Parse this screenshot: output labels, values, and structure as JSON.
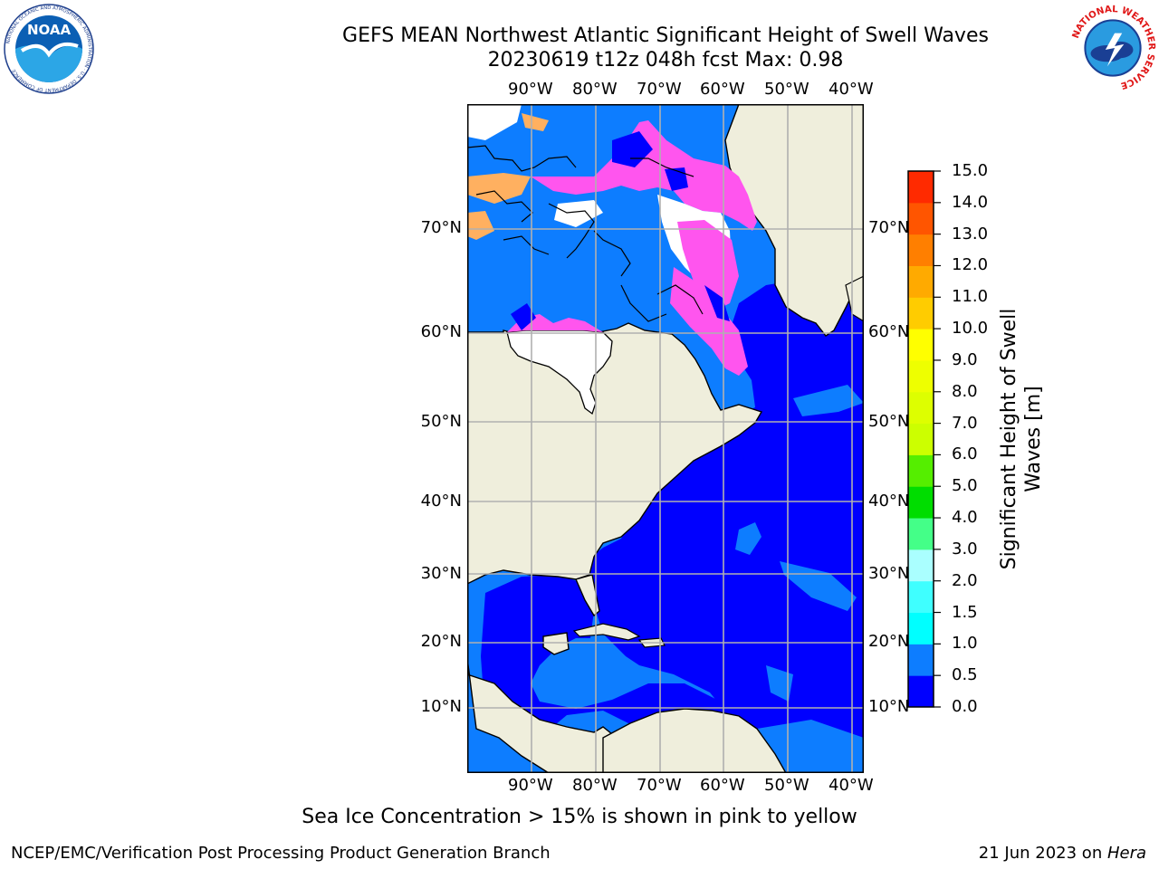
{
  "header": {
    "title_line1": "GEFS MEAN Northwest Atlantic Significant Height of Swell Waves",
    "title_line2": "20230619 t12z 048h fcst   Max: 0.98"
  },
  "logos": {
    "noaa_text": "NOAA",
    "noaa_ring": "NATIONAL OCEANIC AND ATMOSPHERIC ADMINISTRATION · U.S. DEPARTMENT OF COMMERCE",
    "nws_ring": "NATIONAL WEATHER SERVICE"
  },
  "map": {
    "lon_labels": [
      "90°W",
      "80°W",
      "70°W",
      "60°W",
      "50°W",
      "40°W"
    ],
    "lat_labels": [
      "70°N",
      "60°N",
      "50°N",
      "40°N",
      "30°N",
      "20°N",
      "10°N"
    ],
    "colors": {
      "land": "#efeedc",
      "ocean_low": "#0000ff",
      "ocean_mid": "#0d7dff",
      "ice_pink": "#ff55ee",
      "ice_orange": "#ffb060",
      "ice_white": "#ffffff",
      "gridline": "#b0b0b0"
    }
  },
  "colorbar": {
    "title_line1": "Significant Height of Swell",
    "title_line2": "Waves [m]",
    "ticks": [
      "0.0",
      "0.5",
      "1.0",
      "1.5",
      "2.0",
      "3.0",
      "4.0",
      "5.0",
      "6.0",
      "7.0",
      "8.0",
      "9.0",
      "10.0",
      "11.0",
      "12.0",
      "13.0",
      "14.0",
      "15.0"
    ],
    "colors": [
      "#0000ff",
      "#0d7dff",
      "#00ffff",
      "#3fffff",
      "#aaffff",
      "#44ff88",
      "#00dd00",
      "#55ee00",
      "#ccff00",
      "#ddff00",
      "#eeff00",
      "#ffff00",
      "#ffcc00",
      "#ffaa00",
      "#ff7f00",
      "#ff5500",
      "#ff2a00",
      "#ff0000"
    ]
  },
  "notes": {
    "sea_ice": "Sea Ice Concentration > 15% is shown in pink to yellow"
  },
  "footer": {
    "left": "NCEP/EMC/Verification Post Processing Product Generation Branch",
    "right_date": "21 Jun 2023 on ",
    "right_host": "Hera"
  }
}
